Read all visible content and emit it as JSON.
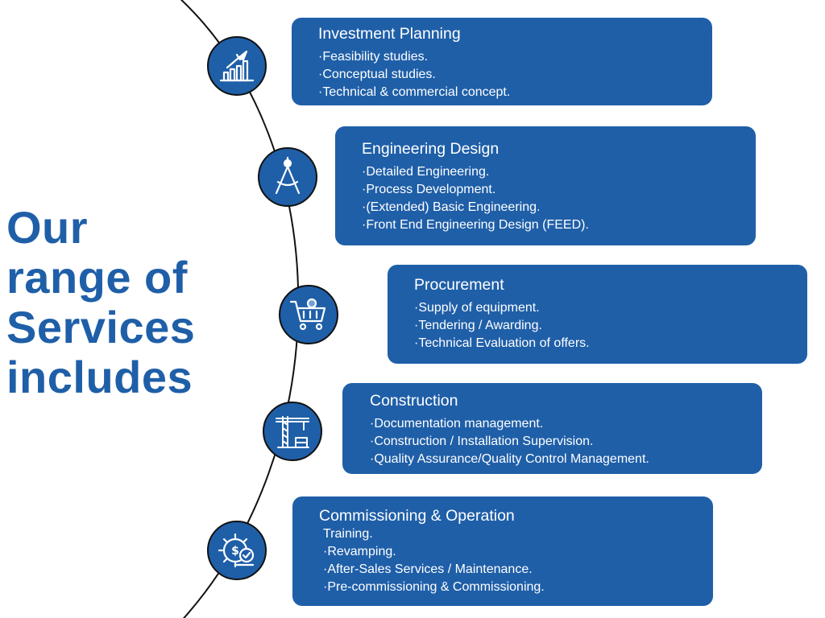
{
  "heading": [
    "Our",
    "range of",
    "Services",
    "includes"
  ],
  "colors": {
    "accent": "#1f5fa8",
    "arc": "#111111",
    "text_on_card": "#ffffff"
  },
  "services": [
    {
      "title": "Investment Planning",
      "icon": "rocket-growth-chart-icon",
      "items": [
        "·Feasibility studies.",
        "·Conceptual studies.",
        "·Technical & commercial concept."
      ]
    },
    {
      "title": "Engineering Design",
      "icon": "drafting-compass-icon",
      "items": [
        "·Detailed Engineering.",
        "·Process Development.",
        "·(Extended) Basic Engineering.",
        "·Front End Engineering Design (FEED)."
      ]
    },
    {
      "title": "Procurement",
      "icon": "shopping-cart-gear-icon",
      "items": [
        "·Supply of equipment.",
        "·Tendering / Awarding.",
        "·Technical Evaluation of offers."
      ]
    },
    {
      "title": "Construction",
      "icon": "construction-crane-icon",
      "items": [
        "·Documentation management.",
        "·Construction / Installation Supervision.",
        "·Quality Assurance/Quality Control Management."
      ]
    },
    {
      "title": "Commissioning & Operation",
      "icon": "gear-money-check-icon",
      "items": [
        "Training.",
        "·Revamping.",
        "·After-Sales Services / Maintenance.",
        "·Pre-commissioning & Commissioning."
      ]
    }
  ]
}
